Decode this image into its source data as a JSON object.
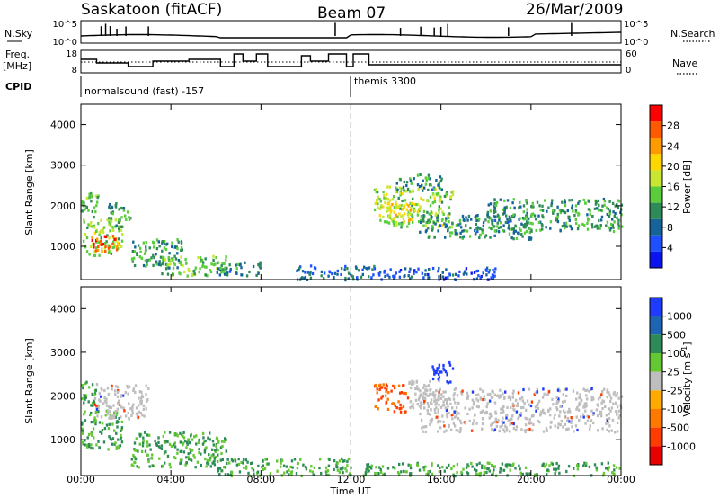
{
  "header": {
    "station": "Saskatoon (fitACF)",
    "beam": "Beam 07",
    "date": "26/Mar/2009"
  },
  "nsky_panel": {
    "left_label": "N.Sky",
    "right_label": "N.Search",
    "left_ticks": [
      "10^5",
      "10^0"
    ],
    "right_ticks": [
      "10^5",
      "10^0"
    ]
  },
  "freq_panel": {
    "left_label_1": "Freq.",
    "left_label_2": "[MHz]",
    "right_label": "Nave",
    "left_ticks": [
      "18",
      "8"
    ],
    "right_ticks": [
      "60",
      "0"
    ]
  },
  "cpid": {
    "label": "CPID",
    "segments": [
      {
        "name": "normalsound (fast) -157",
        "start_hour": 0
      },
      {
        "name": "themis 3300",
        "start_hour": 12
      }
    ]
  },
  "x_axis": {
    "label": "Time UT",
    "ticks": [
      "00:00",
      "04:00",
      "08:00",
      "12:00",
      "16:00",
      "20:00",
      "00:00"
    ]
  },
  "chart_data": [
    {
      "type": "heatmap",
      "title": "Power",
      "xlabel": "Time UT",
      "ylabel": "Slant Range [km]",
      "xlim": [
        0,
        24
      ],
      "ylim": [
        180,
        4500
      ],
      "y_ticks": [
        "1000",
        "2000",
        "3000",
        "4000"
      ],
      "colorbar": {
        "label": "Power [dB]",
        "range": [
          0,
          32
        ],
        "tick_labels": [
          "4",
          "8",
          "12",
          "16",
          "20",
          "24",
          "28"
        ],
        "colors": [
          "#0a14f0",
          "#1e50ff",
          "#14649a",
          "#2e8b57",
          "#5acd3c",
          "#c8e632",
          "#ffd700",
          "#ff9a00",
          "#ff5a00",
          "#ff0000"
        ]
      },
      "regions": [
        {
          "t": [
            0.0,
            0.8
          ],
          "r": [
            1750,
            2350
          ],
          "v": 14
        },
        {
          "t": [
            0.0,
            1.8
          ],
          "r": [
            800,
            1700
          ],
          "v": 16
        },
        {
          "t": [
            0.4,
            1.6
          ],
          "r": [
            900,
            1300
          ],
          "v": 28
        },
        {
          "t": [
            1.2,
            2.2
          ],
          "r": [
            1500,
            2100
          ],
          "v": 12
        },
        {
          "t": [
            2.2,
            4.5
          ],
          "r": [
            500,
            1200
          ],
          "v": 12
        },
        {
          "t": [
            3.5,
            6.5
          ],
          "r": [
            300,
            800
          ],
          "v": 14
        },
        {
          "t": [
            6.0,
            8.0
          ],
          "r": [
            300,
            650
          ],
          "v": 10
        },
        {
          "t": [
            9.5,
            13.0
          ],
          "r": [
            200,
            550
          ],
          "v": 8
        },
        {
          "t": [
            13.0,
            16.5
          ],
          "r": [
            1500,
            2500
          ],
          "v": 16
        },
        {
          "t": [
            13.5,
            14.8
          ],
          "r": [
            1650,
            2150
          ],
          "v": 20
        },
        {
          "t": [
            14.0,
            16.0
          ],
          "r": [
            2400,
            2800
          ],
          "v": 10
        },
        {
          "t": [
            15.0,
            20.0
          ],
          "r": [
            1200,
            1800
          ],
          "v": 10
        },
        {
          "t": [
            18.0,
            24.0
          ],
          "r": [
            1400,
            2200
          ],
          "v": 12
        },
        {
          "t": [
            13.0,
            18.5
          ],
          "r": [
            200,
            500
          ],
          "v": 6
        }
      ]
    },
    {
      "type": "heatmap",
      "title": "Velocity",
      "xlabel": "Time UT",
      "ylabel": "Slant Range [km]",
      "xlim": [
        0,
        24
      ],
      "ylim": [
        180,
        4500
      ],
      "y_ticks": [
        "1000",
        "2000",
        "3000",
        "4000"
      ],
      "colorbar": {
        "label": "Velocity [m s^-1]",
        "tick_labels": [
          "1000",
          "500",
          "100",
          "25",
          "-25",
          "-100",
          "-500",
          "-1000"
        ],
        "colors": [
          "#1e3cff",
          "#1e64b4",
          "#2e8b57",
          "#64c832",
          "#bebebe",
          "#ffaa00",
          "#ff7800",
          "#ff3c00",
          "#e60000"
        ]
      },
      "regions": [
        {
          "t": [
            0.0,
            0.8
          ],
          "r": [
            1750,
            2350
          ],
          "v": 100
        },
        {
          "t": [
            0.0,
            1.8
          ],
          "r": [
            800,
            1700
          ],
          "v": 100
        },
        {
          "t": [
            0.5,
            3.0
          ],
          "r": [
            1500,
            2300
          ],
          "v": 0
        },
        {
          "t": [
            2.2,
            6.5
          ],
          "r": [
            400,
            1200
          ],
          "v": 100
        },
        {
          "t": [
            6.0,
            12.0
          ],
          "r": [
            200,
            600
          ],
          "v": 100
        },
        {
          "t": [
            13.0,
            14.5
          ],
          "r": [
            1650,
            2300
          ],
          "v": -500
        },
        {
          "t": [
            14.5,
            16.0
          ],
          "r": [
            1700,
            2400
          ],
          "v": -25
        },
        {
          "t": [
            15.5,
            16.5
          ],
          "r": [
            2300,
            2800
          ],
          "v": 1000
        },
        {
          "t": [
            15.0,
            24.0
          ],
          "r": [
            1200,
            2200
          ],
          "v": 0
        },
        {
          "t": [
            12.5,
            24.0
          ],
          "r": [
            200,
            500
          ],
          "v": 100
        }
      ]
    }
  ]
}
